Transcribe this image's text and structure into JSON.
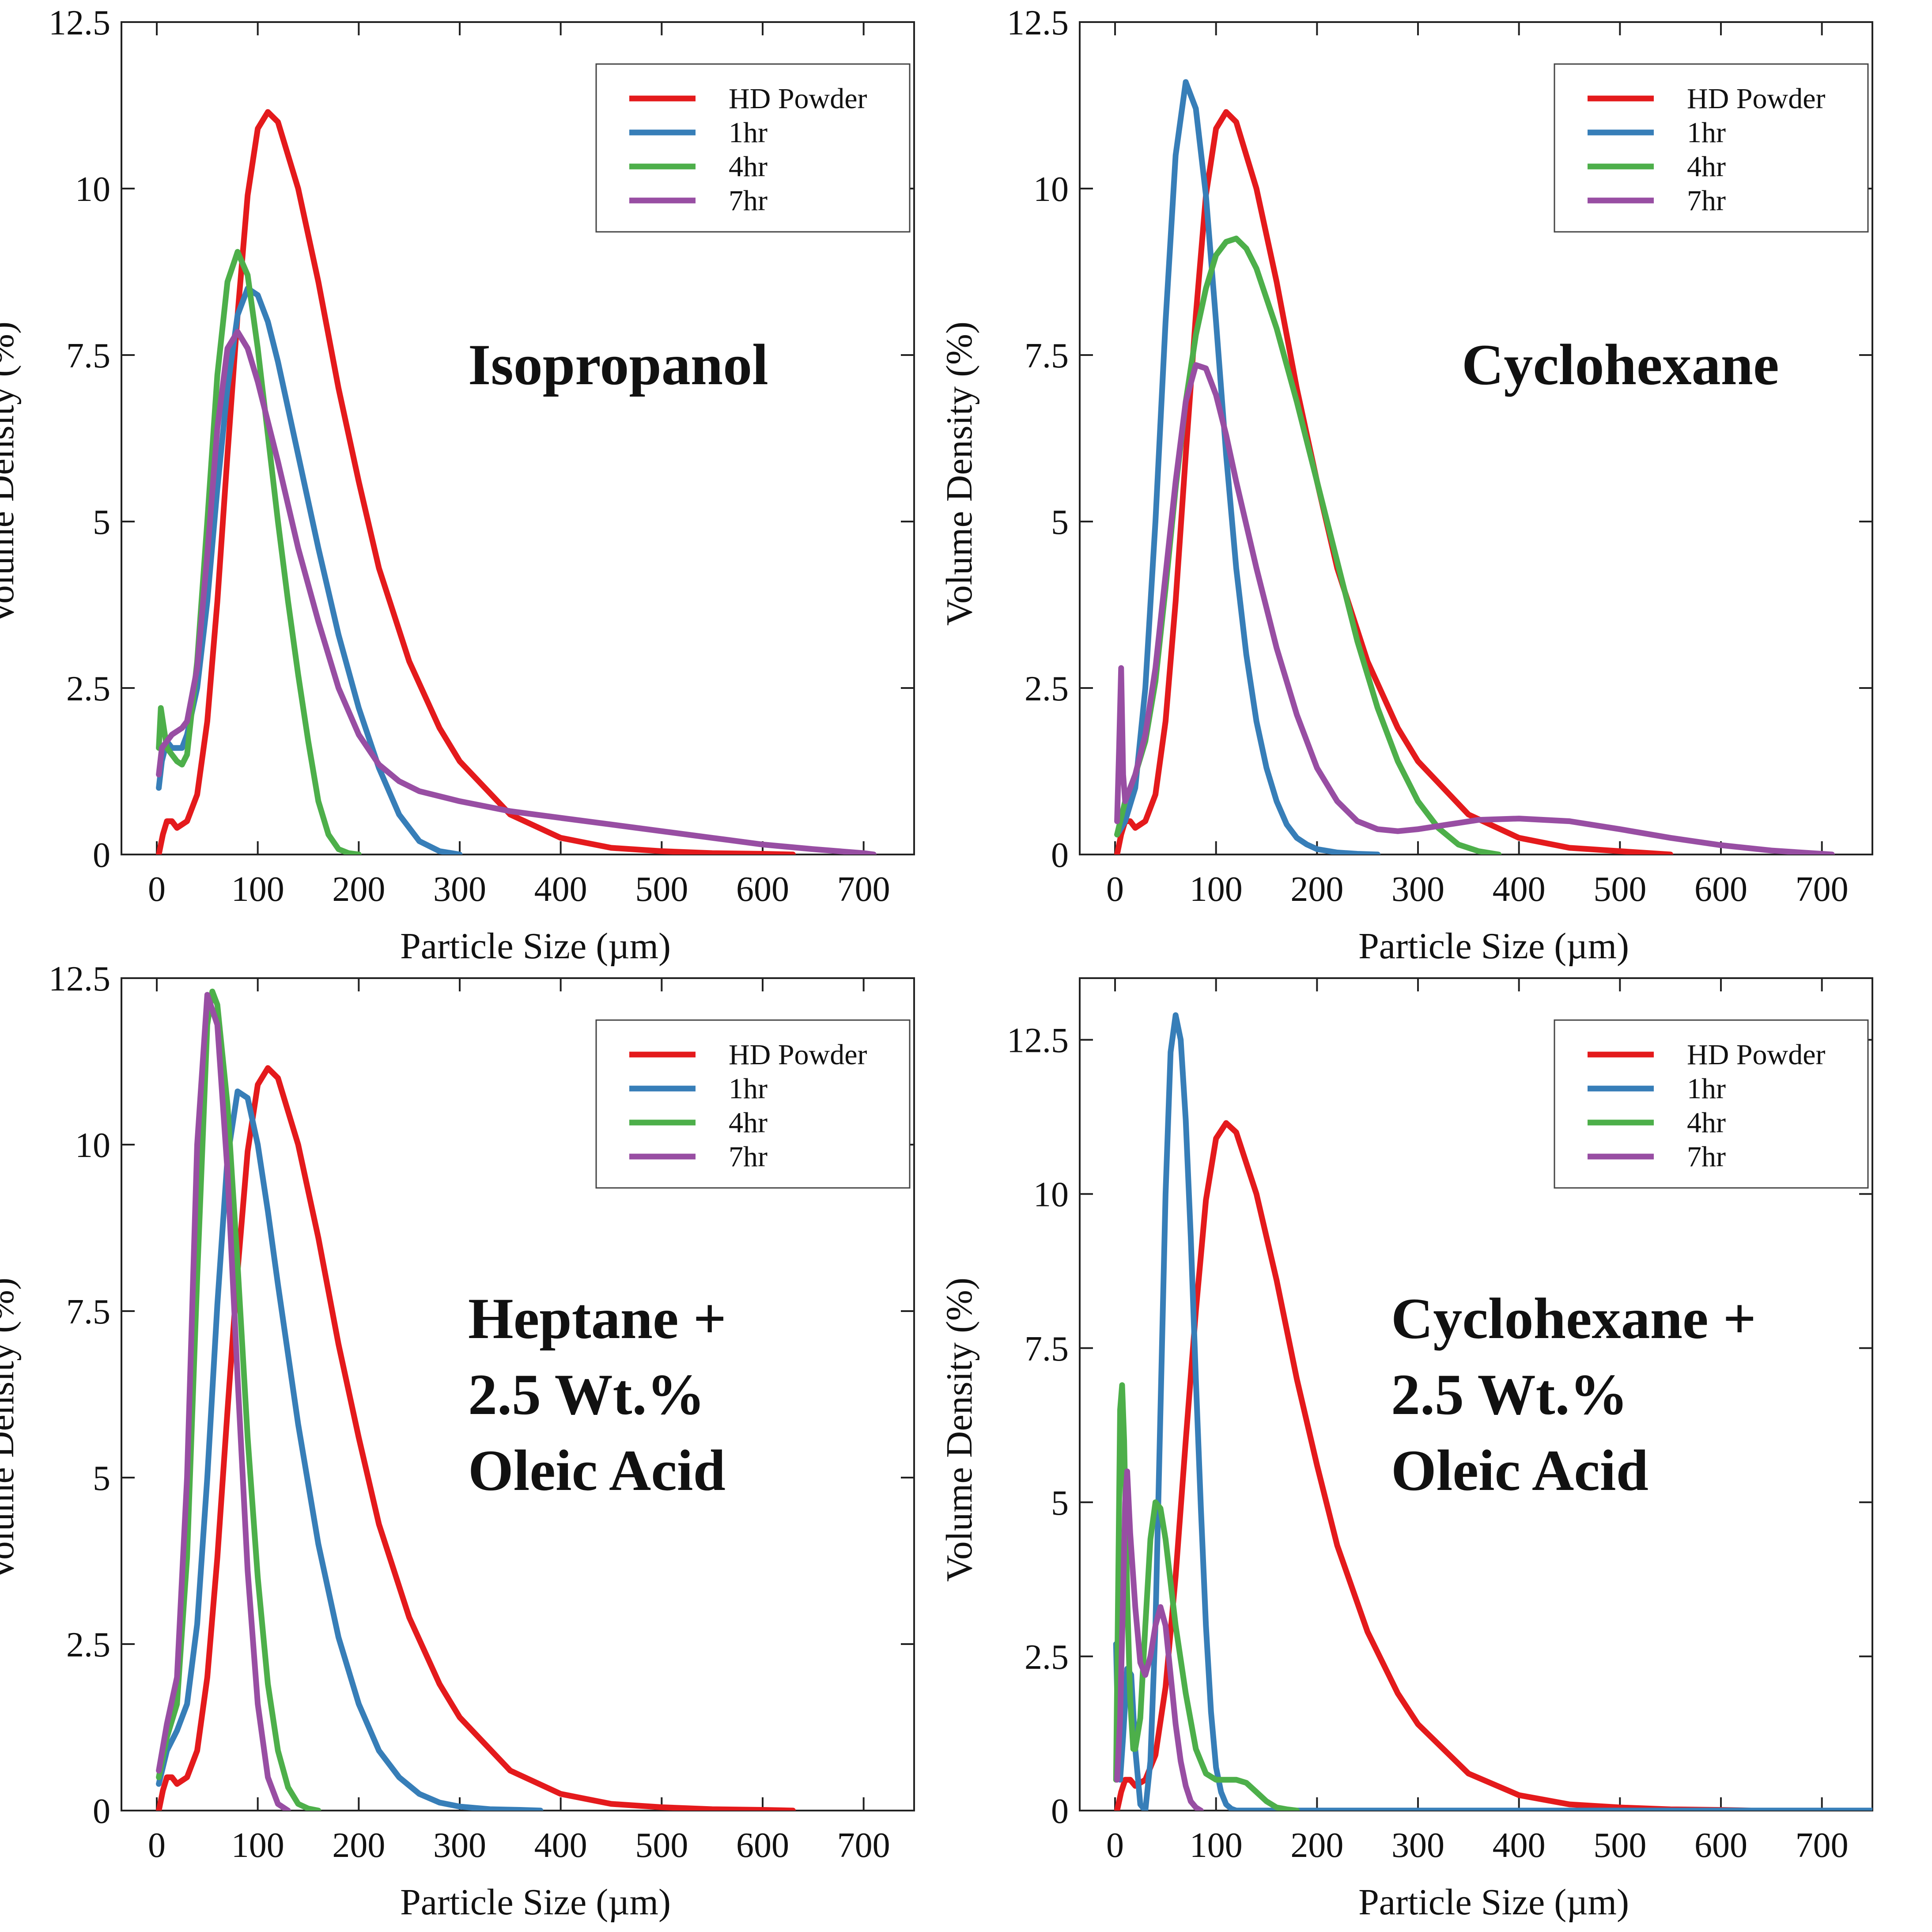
{
  "colors": {
    "hd": "#e41a1c",
    "h1": "#377eb8",
    "h4": "#4daf4a",
    "h7": "#984ea3",
    "axis": "#222222"
  },
  "legend_labels": [
    "HD Powder",
    "1hr",
    "4hr",
    "7hr"
  ],
  "chart_data": [
    {
      "type": "line",
      "title": "Isopropanol",
      "title_lines": [
        "Isopropanol"
      ],
      "xlabel": "Particle Size (µm)",
      "ylabel": "Volume Density (%)",
      "xlim": [
        -35,
        750
      ],
      "ylim": [
        0,
        12.5
      ],
      "xticks": [
        0,
        100,
        200,
        300,
        400,
        500,
        600,
        700
      ],
      "yticks": [
        0,
        2.5,
        5,
        7.5,
        10,
        12.5
      ],
      "ytick_labels": [
        "0",
        "2.5",
        "5",
        "7.5",
        "10",
        "12.5"
      ],
      "legend": "top-right",
      "series": [
        {
          "name": "HD Powder",
          "color": "#e41a1c",
          "x": [
            2,
            6,
            10,
            15,
            20,
            30,
            40,
            50,
            60,
            70,
            80,
            90,
            100,
            110,
            120,
            140,
            160,
            180,
            200,
            220,
            250,
            280,
            300,
            350,
            400,
            450,
            500,
            550,
            600,
            630
          ],
          "y": [
            0,
            0.3,
            0.5,
            0.5,
            0.4,
            0.5,
            0.9,
            2.0,
            3.8,
            6.0,
            8.1,
            9.9,
            10.9,
            11.15,
            11.0,
            10.0,
            8.6,
            7.0,
            5.6,
            4.3,
            2.9,
            1.9,
            1.4,
            0.6,
            0.25,
            0.1,
            0.05,
            0.02,
            0.01,
            0
          ]
        },
        {
          "name": "1hr",
          "color": "#377eb8",
          "x": [
            2,
            5,
            10,
            15,
            20,
            25,
            30,
            40,
            50,
            60,
            70,
            80,
            90,
            100,
            110,
            120,
            140,
            160,
            180,
            200,
            220,
            240,
            260,
            280,
            300
          ],
          "y": [
            1.0,
            1.4,
            1.7,
            1.6,
            1.6,
            1.6,
            1.8,
            2.5,
            3.8,
            5.5,
            7.0,
            8.1,
            8.5,
            8.4,
            8.0,
            7.4,
            6.0,
            4.6,
            3.3,
            2.2,
            1.3,
            0.6,
            0.2,
            0.05,
            0
          ]
        },
        {
          "name": "4hr",
          "color": "#4daf4a",
          "x": [
            2,
            4,
            7,
            10,
            15,
            20,
            25,
            30,
            40,
            50,
            60,
            70,
            80,
            90,
            100,
            110,
            120,
            130,
            140,
            150,
            160,
            170,
            180,
            190,
            200
          ],
          "y": [
            1.6,
            2.2,
            1.9,
            1.6,
            1.5,
            1.4,
            1.35,
            1.5,
            2.9,
            5.0,
            7.2,
            8.6,
            9.05,
            8.7,
            7.6,
            6.3,
            5.0,
            3.8,
            2.7,
            1.7,
            0.8,
            0.3,
            0.08,
            0.02,
            0
          ]
        },
        {
          "name": "7hr",
          "color": "#984ea3",
          "x": [
            2,
            5,
            10,
            15,
            20,
            25,
            30,
            40,
            50,
            60,
            70,
            80,
            90,
            100,
            110,
            120,
            140,
            160,
            180,
            200,
            220,
            240,
            260,
            300,
            350,
            400,
            450,
            500,
            550,
            600,
            650,
            700,
            710
          ],
          "y": [
            1.2,
            1.6,
            1.7,
            1.8,
            1.85,
            1.9,
            2.0,
            2.8,
            4.5,
            6.4,
            7.6,
            7.85,
            7.6,
            7.1,
            6.5,
            5.9,
            4.6,
            3.5,
            2.5,
            1.8,
            1.35,
            1.1,
            0.95,
            0.8,
            0.65,
            0.55,
            0.45,
            0.35,
            0.25,
            0.15,
            0.08,
            0.02,
            0
          ]
        }
      ]
    },
    {
      "type": "line",
      "title": "Cyclohexane",
      "title_lines": [
        "Cyclohexane"
      ],
      "xlabel": "Particle Size (µm)",
      "ylabel": "Volume Density (%)",
      "xlim": [
        -35,
        750
      ],
      "ylim": [
        0,
        12.5
      ],
      "xticks": [
        0,
        100,
        200,
        300,
        400,
        500,
        600,
        700
      ],
      "yticks": [
        0,
        2.5,
        5,
        7.5,
        10,
        12.5
      ],
      "ytick_labels": [
        "0",
        "2.5",
        "5",
        "7.5",
        "10",
        "12.5"
      ],
      "legend": "top-right",
      "series": [
        {
          "name": "HD Powder",
          "color": "#e41a1c",
          "x": [
            2,
            6,
            10,
            15,
            20,
            30,
            40,
            50,
            60,
            70,
            80,
            90,
            100,
            110,
            120,
            140,
            160,
            180,
            200,
            220,
            250,
            280,
            300,
            350,
            400,
            450,
            500,
            550
          ],
          "y": [
            0,
            0.3,
            0.5,
            0.5,
            0.4,
            0.5,
            0.9,
            2.0,
            3.8,
            6.0,
            8.1,
            9.9,
            10.9,
            11.15,
            11.0,
            10.0,
            8.6,
            7.0,
            5.6,
            4.3,
            2.9,
            1.9,
            1.4,
            0.6,
            0.25,
            0.1,
            0.05,
            0
          ]
        },
        {
          "name": "1hr",
          "color": "#377eb8",
          "x": [
            2,
            10,
            20,
            30,
            40,
            50,
            60,
            70,
            80,
            90,
            100,
            110,
            120,
            130,
            140,
            150,
            160,
            170,
            180,
            190,
            200,
            220,
            240,
            260
          ],
          "y": [
            0.3,
            0.5,
            1.0,
            2.5,
            5.0,
            8.0,
            10.5,
            11.6,
            11.2,
            9.9,
            8.0,
            6.0,
            4.3,
            3.0,
            2.0,
            1.3,
            0.8,
            0.45,
            0.25,
            0.15,
            0.08,
            0.03,
            0.01,
            0
          ]
        },
        {
          "name": "4hr",
          "color": "#4daf4a",
          "x": [
            2,
            10,
            20,
            30,
            40,
            50,
            60,
            70,
            80,
            90,
            100,
            110,
            120,
            130,
            140,
            160,
            180,
            200,
            220,
            240,
            260,
            280,
            300,
            320,
            340,
            360,
            380
          ],
          "y": [
            0.3,
            0.8,
            1.2,
            1.7,
            2.6,
            4.0,
            5.5,
            6.8,
            7.8,
            8.5,
            9.0,
            9.2,
            9.25,
            9.1,
            8.8,
            7.9,
            6.8,
            5.6,
            4.4,
            3.2,
            2.2,
            1.4,
            0.8,
            0.4,
            0.15,
            0.05,
            0
          ]
        },
        {
          "name": "7hr",
          "color": "#984ea3",
          "x": [
            2,
            4,
            6,
            8,
            10,
            20,
            30,
            40,
            50,
            60,
            70,
            80,
            90,
            100,
            110,
            120,
            140,
            160,
            180,
            200,
            220,
            240,
            260,
            280,
            300,
            330,
            360,
            400,
            450,
            500,
            550,
            600,
            650,
            700,
            710
          ],
          "y": [
            0.5,
            1.6,
            2.8,
            1.2,
            0.8,
            1.2,
            1.8,
            2.8,
            4.2,
            5.6,
            6.8,
            7.35,
            7.3,
            6.9,
            6.3,
            5.6,
            4.3,
            3.1,
            2.1,
            1.3,
            0.8,
            0.5,
            0.38,
            0.35,
            0.38,
            0.45,
            0.52,
            0.54,
            0.5,
            0.38,
            0.25,
            0.14,
            0.06,
            0.01,
            0
          ]
        }
      ]
    },
    {
      "type": "line",
      "title": "Heptane + 2.5 Wt.% Oleic Acid",
      "title_lines": [
        "Heptane +",
        "2.5 Wt.%",
        "Oleic Acid"
      ],
      "xlabel": "Particle Size (µm)",
      "ylabel": "Volume Density (%)",
      "xlim": [
        -35,
        750
      ],
      "ylim": [
        0,
        12.5
      ],
      "xticks": [
        0,
        100,
        200,
        300,
        400,
        500,
        600,
        700
      ],
      "yticks": [
        0,
        2.5,
        5,
        7.5,
        10,
        12.5
      ],
      "ytick_labels": [
        "0",
        "2.5",
        "5",
        "7.5",
        "10",
        "12.5"
      ],
      "legend": "top-right",
      "series": [
        {
          "name": "HD Powder",
          "color": "#e41a1c",
          "x": [
            2,
            6,
            10,
            15,
            20,
            30,
            40,
            50,
            60,
            70,
            80,
            90,
            100,
            110,
            120,
            140,
            160,
            180,
            200,
            220,
            250,
            280,
            300,
            350,
            400,
            450,
            500,
            550,
            600,
            630
          ],
          "y": [
            0,
            0.3,
            0.5,
            0.5,
            0.4,
            0.5,
            0.9,
            2.0,
            3.8,
            6.0,
            8.1,
            9.9,
            10.9,
            11.15,
            11.0,
            10.0,
            8.6,
            7.0,
            5.6,
            4.3,
            2.9,
            1.9,
            1.4,
            0.6,
            0.25,
            0.1,
            0.05,
            0.02,
            0.01,
            0
          ]
        },
        {
          "name": "1hr",
          "color": "#377eb8",
          "x": [
            2,
            10,
            20,
            30,
            40,
            50,
            60,
            70,
            80,
            90,
            100,
            110,
            120,
            140,
            160,
            180,
            200,
            220,
            240,
            260,
            280,
            300,
            330,
            360,
            380
          ],
          "y": [
            0.4,
            0.9,
            1.2,
            1.6,
            2.8,
            5.0,
            7.6,
            9.8,
            10.8,
            10.7,
            10.0,
            9.0,
            7.9,
            5.8,
            4.0,
            2.6,
            1.6,
            0.9,
            0.5,
            0.25,
            0.12,
            0.06,
            0.02,
            0.01,
            0
          ]
        },
        {
          "name": "4hr",
          "color": "#4daf4a",
          "x": [
            2,
            10,
            20,
            30,
            40,
            50,
            55,
            60,
            70,
            80,
            90,
            100,
            110,
            120,
            130,
            140,
            150,
            160
          ],
          "y": [
            0.5,
            1.1,
            1.6,
            3.8,
            8.0,
            11.8,
            12.3,
            12.1,
            10.6,
            8.2,
            5.6,
            3.5,
            1.9,
            0.9,
            0.35,
            0.1,
            0.03,
            0
          ]
        },
        {
          "name": "7hr",
          "color": "#984ea3",
          "x": [
            2,
            10,
            20,
            30,
            40,
            50,
            60,
            70,
            80,
            90,
            100,
            110,
            120,
            130
          ],
          "y": [
            0.6,
            1.3,
            2.0,
            5.0,
            10.0,
            12.25,
            11.8,
            9.6,
            6.5,
            3.6,
            1.6,
            0.5,
            0.1,
            0
          ]
        }
      ]
    },
    {
      "type": "line",
      "title": "Cyclohexane + 2.5 Wt.% Oleic Acid",
      "title_lines": [
        "Cyclohexane +",
        "2.5 Wt.%",
        "Oleic Acid"
      ],
      "xlabel": "Particle Size (µm)",
      "ylabel": "Volume Density (%)",
      "xlim": [
        -35,
        750
      ],
      "ylim": [
        0,
        13.5
      ],
      "xticks": [
        0,
        100,
        200,
        300,
        400,
        500,
        600,
        700
      ],
      "yticks": [
        0,
        2.5,
        5,
        7.5,
        10,
        12.5
      ],
      "ytick_labels": [
        "0",
        "2.5",
        "5",
        "7.5",
        "10",
        "12.5"
      ],
      "legend": "top-right",
      "series": [
        {
          "name": "HD Powder",
          "color": "#e41a1c",
          "x": [
            2,
            6,
            10,
            15,
            20,
            30,
            40,
            50,
            60,
            70,
            80,
            90,
            100,
            110,
            120,
            140,
            160,
            180,
            200,
            220,
            250,
            280,
            300,
            350,
            400,
            450,
            500,
            550,
            600,
            630
          ],
          "y": [
            0,
            0.3,
            0.5,
            0.5,
            0.4,
            0.5,
            0.9,
            2.0,
            3.8,
            6.0,
            8.1,
            9.9,
            10.9,
            11.15,
            11.0,
            10.0,
            8.6,
            7.0,
            5.6,
            4.3,
            2.9,
            1.9,
            1.4,
            0.6,
            0.25,
            0.1,
            0.05,
            0.02,
            0.01,
            0
          ]
        },
        {
          "name": "1hr",
          "color": "#377eb8",
          "x": [
            1,
            3,
            5,
            8,
            12,
            16,
            20,
            25,
            30,
            35,
            40,
            45,
            50,
            55,
            60,
            65,
            70,
            75,
            80,
            85,
            90,
            95,
            100,
            105,
            110,
            115,
            120,
            130,
            160,
            200,
            300,
            400,
            500,
            600,
            700,
            750
          ],
          "y": [
            2.7,
            1.2,
            0.5,
            1.2,
            2.3,
            2.2,
            1.0,
            0.1,
            0,
            0.8,
            3.0,
            6.5,
            10.0,
            12.3,
            12.9,
            12.5,
            11.2,
            9.3,
            7.0,
            4.9,
            3.0,
            1.6,
            0.7,
            0.3,
            0.1,
            0.03,
            0,
            0,
            0,
            0,
            0,
            0,
            0,
            0,
            0,
            0
          ]
        },
        {
          "name": "4hr",
          "color": "#4daf4a",
          "x": [
            1,
            3,
            5,
            7,
            9,
            12,
            15,
            18,
            20,
            25,
            30,
            35,
            40,
            45,
            50,
            55,
            60,
            70,
            80,
            90,
            100,
            110,
            120,
            130,
            140,
            150,
            160,
            170,
            180
          ],
          "y": [
            0.5,
            3.5,
            6.5,
            6.9,
            6.0,
            3.5,
            1.8,
            1.0,
            1.0,
            1.5,
            3.0,
            4.4,
            5.0,
            4.9,
            4.4,
            3.7,
            3.0,
            1.9,
            1.0,
            0.6,
            0.5,
            0.5,
            0.5,
            0.45,
            0.3,
            0.15,
            0.05,
            0.02,
            0
          ]
        },
        {
          "name": "7hr",
          "color": "#984ea3",
          "x": [
            2,
            5,
            8,
            10,
            12,
            15,
            20,
            25,
            30,
            35,
            40,
            45,
            50,
            55,
            60,
            65,
            70,
            75,
            80,
            85
          ],
          "y": [
            0.5,
            1.5,
            3.5,
            5.0,
            5.5,
            4.5,
            3.3,
            2.4,
            2.2,
            2.5,
            3.0,
            3.3,
            3.0,
            2.2,
            1.4,
            0.8,
            0.4,
            0.15,
            0.05,
            0
          ]
        }
      ]
    }
  ]
}
